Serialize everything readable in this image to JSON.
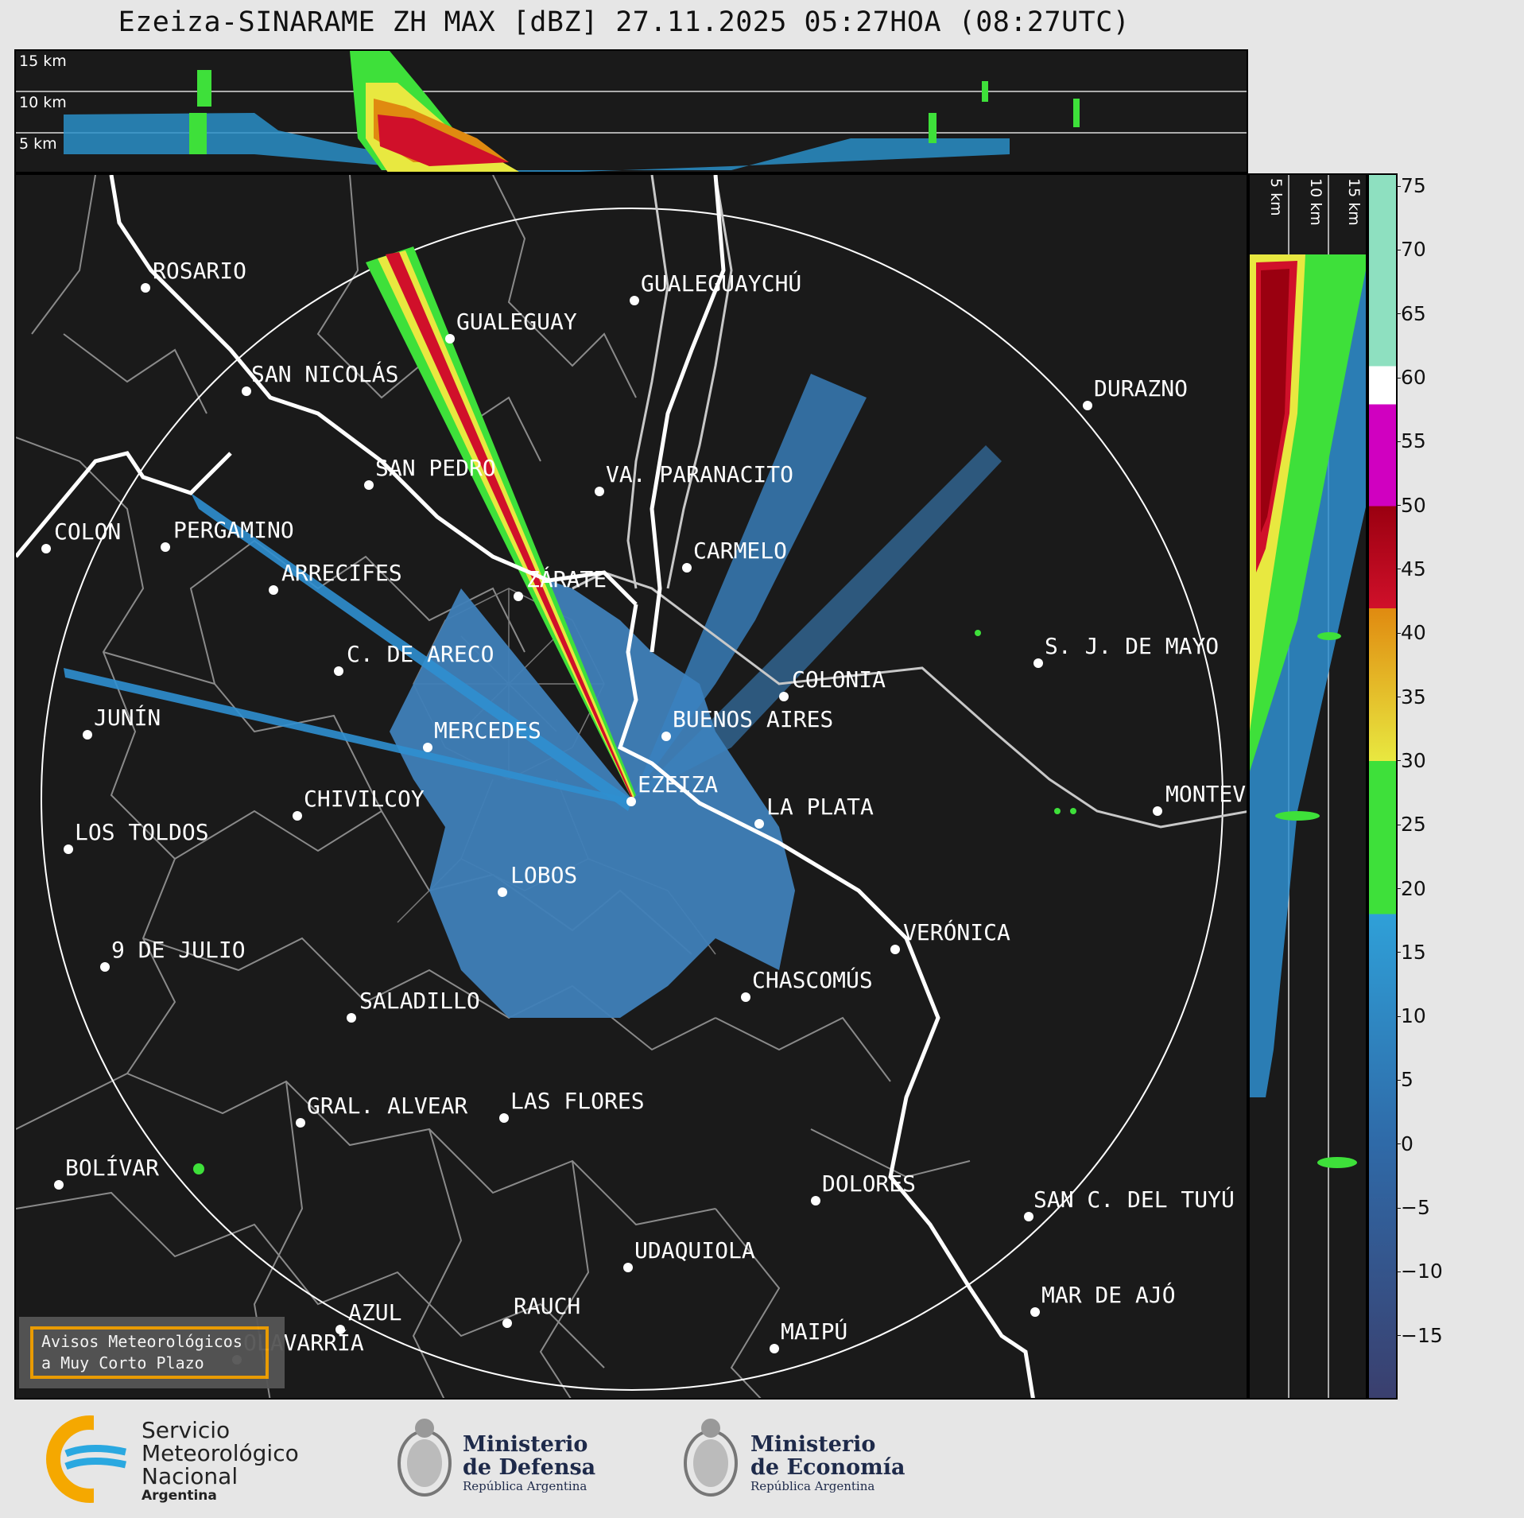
{
  "title": "Ezeiza-SINARAME ZH MAX [dBZ] 27.11.2025 05:27HOA (08:27UTC)",
  "top_panel": {
    "height_labels": [
      "15 km",
      "10 km",
      "5 km"
    ]
  },
  "side_panel": {
    "height_labels": [
      "5 km",
      "10 km",
      "15 km"
    ]
  },
  "cities": [
    {
      "name": "ROSARIO"
    },
    {
      "name": "GUALEGUAYCHÚ"
    },
    {
      "name": "GUALEGUAY"
    },
    {
      "name": "SAN NICOLÁS"
    },
    {
      "name": "DURAZNO"
    },
    {
      "name": "SAN PEDRO"
    },
    {
      "name": "VA. PARANACITO"
    },
    {
      "name": "COLON"
    },
    {
      "name": "PERGAMINO"
    },
    {
      "name": "CARMELO"
    },
    {
      "name": "ARRECIFES"
    },
    {
      "name": "ZÁRATE"
    },
    {
      "name": "S. J. DE MAYO"
    },
    {
      "name": "C. DE ARECO"
    },
    {
      "name": "COLONIA"
    },
    {
      "name": "JUNÍN"
    },
    {
      "name": "BUENOS AIRES"
    },
    {
      "name": "MERCEDES"
    },
    {
      "name": "EZEIZA"
    },
    {
      "name": "MONTEV"
    },
    {
      "name": "CHIVILCOY"
    },
    {
      "name": "LA PLATA"
    },
    {
      "name": "LOS TOLDOS"
    },
    {
      "name": "LOBOS"
    },
    {
      "name": "VERÓNICA"
    },
    {
      "name": "9 DE JULIO"
    },
    {
      "name": "CHASCOMÚS"
    },
    {
      "name": "SALADILLO"
    },
    {
      "name": "GRAL. ALVEAR"
    },
    {
      "name": "LAS FLORES"
    },
    {
      "name": "BOLÍVAR"
    },
    {
      "name": "DOLORES"
    },
    {
      "name": "SAN C. DEL TUYÚ"
    },
    {
      "name": "UDAQUIOLA"
    },
    {
      "name": "MAR DE AJÓ"
    },
    {
      "name": "AZUL"
    },
    {
      "name": "RAUCH"
    },
    {
      "name": "MAIPÚ"
    },
    {
      "name": "OLAVARRÍA"
    }
  ],
  "notice_box": {
    "line1": "Avisos Meteorológicos",
    "line2": "a Muy Corto Plazo"
  },
  "colorbar": {
    "ticks": [
      "75",
      "70",
      "65",
      "60",
      "55",
      "50",
      "45",
      "40",
      "35",
      "30",
      "25",
      "20",
      "15",
      "10",
      "5",
      "0",
      "−5",
      "−10",
      "−15"
    ],
    "range": [
      -20,
      76
    ],
    "colors": {
      "bottom": "#3a3f6e",
      "low": "#2f6aa8",
      "blue": "#2fa0d8",
      "green": "#3ee03a",
      "yellow": "#e8e840",
      "orange": "#e08a10",
      "red": "#d0102a",
      "darkred": "#9a0010",
      "magenta": "#d000c0",
      "white": "#ffffff",
      "mint": "#8ee0c0"
    }
  },
  "footer": {
    "smn": {
      "line1": "Servicio",
      "line2": "Meteorológico",
      "line3": "Nacional",
      "line4": "Argentina"
    },
    "defensa": {
      "line1": "Ministerio",
      "line2": "de Defensa",
      "line3": "República Argentina"
    },
    "economia": {
      "line1": "Ministerio",
      "line2": "de Economía",
      "line3": "República Argentina"
    }
  }
}
